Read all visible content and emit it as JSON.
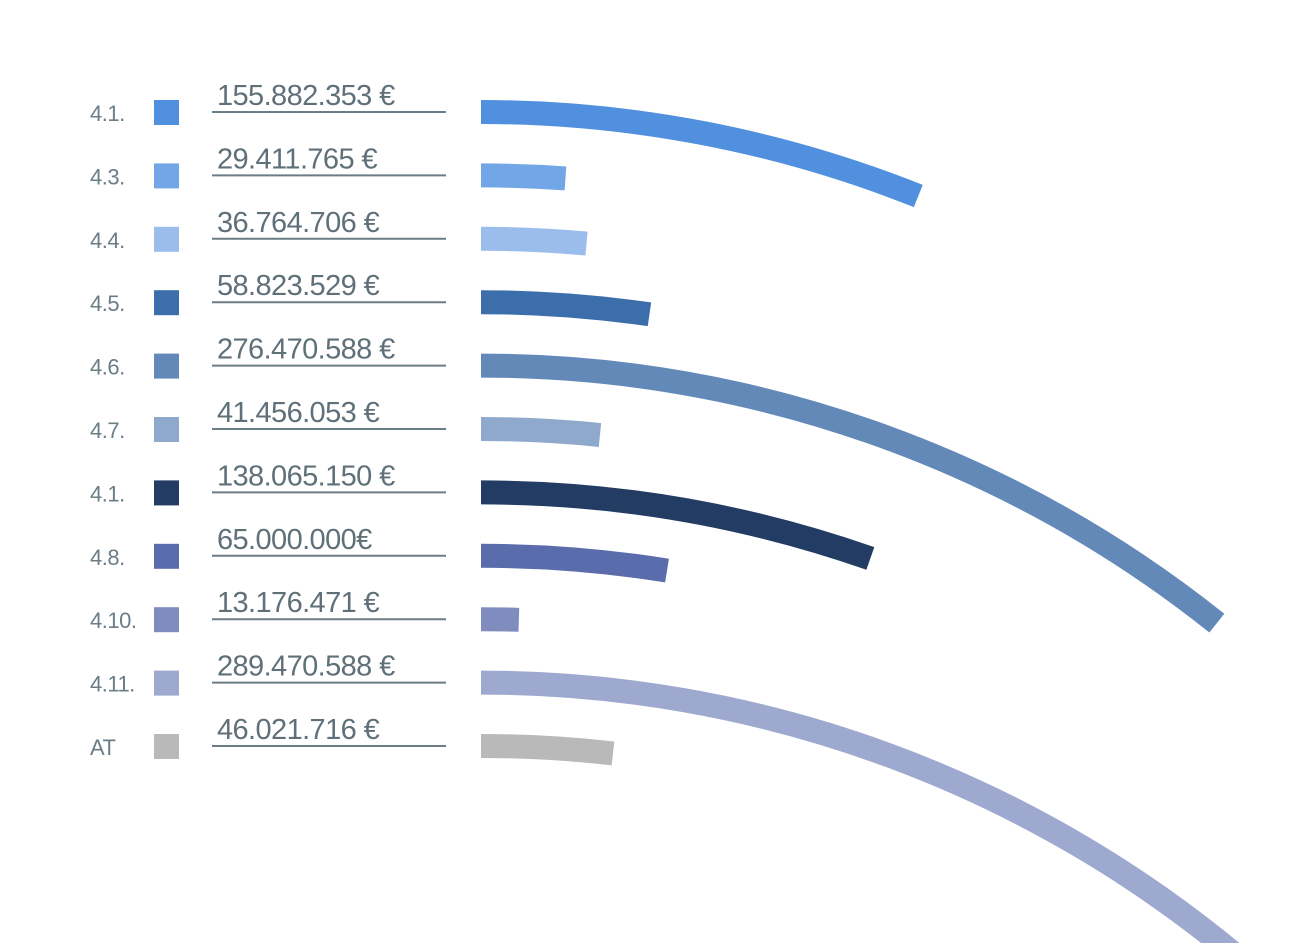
{
  "chart_data": {
    "type": "bar",
    "categories": [
      "4.1.",
      "4.3.",
      "4.4.",
      "4.5.",
      "4.6.",
      "4.7.",
      "4.1.",
      "4.8.",
      "4.10.",
      "4.11.",
      "AT"
    ],
    "series": [
      {
        "values": [
          155882353,
          29411765,
          36764706,
          58823529,
          276470588,
          41456053,
          138065150,
          65000000,
          13176471,
          289470588,
          46021716
        ],
        "labels": [
          "155.882.353 €",
          "29.411.765 €",
          "36.764.706 €",
          "58.823.529 €",
          "276.470.588 €",
          "41.456.053 €",
          "138.065.150 €",
          "65.000.000€",
          "13.176.471 €",
          "289.470.588 €",
          "46.021.716 €"
        ],
        "colors": [
          "#5090de",
          "#72a6e6",
          "#9bbdec",
          "#3c6eab",
          "#6389b9",
          "#8ea9cc",
          "#223c63",
          "#5a6cac",
          "#7f8cbd",
          "#9ea9cf",
          "#b9b9b9"
        ]
      }
    ],
    "title": "",
    "xlabel": "",
    "ylabel": "",
    "grid": false,
    "legend": "none",
    "orientation": "horizontal",
    "bar_shape": "curved-arc"
  }
}
